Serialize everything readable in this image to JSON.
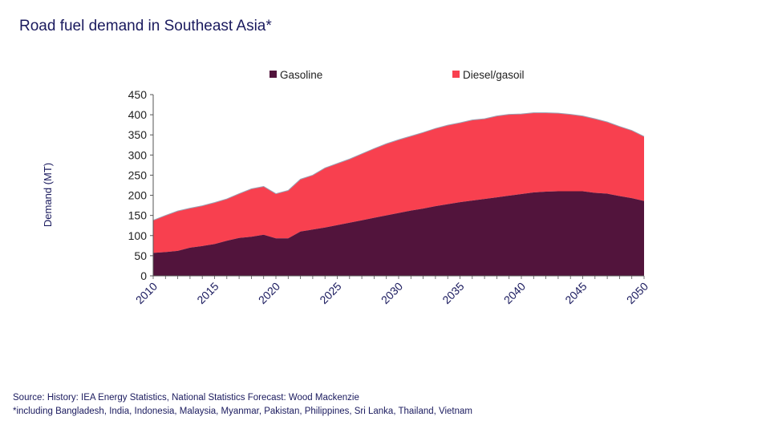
{
  "title": "Road fuel demand in Southeast Asia*",
  "source_line": "Source: History: IEA Energy Statistics, National Statistics Forecast: Wood Mackenzie",
  "footnote": "*including Bangladesh, India, Indonesia, Malaysia, Myanmar, Pakistan, Philippines, Sri Lanka, Thailand, Vietnam",
  "chart_data": {
    "type": "area",
    "stacked": true,
    "title": "Road fuel demand in Southeast Asia*",
    "xlabel": "",
    "ylabel": "Demand (MT)",
    "ylim": [
      0,
      450
    ],
    "yticks": [
      0,
      50,
      100,
      150,
      200,
      250,
      300,
      350,
      400,
      450
    ],
    "xlim": [
      2010,
      2050
    ],
    "xticks": [
      2010,
      2015,
      2020,
      2025,
      2030,
      2035,
      2040,
      2045,
      2050
    ],
    "grid": false,
    "legend": "top",
    "colors": {
      "gasoline": "#52143c",
      "diesel": "#f8404f",
      "axis": "#555555",
      "text": "#1a1a5e"
    },
    "x": [
      2010,
      2011,
      2012,
      2013,
      2014,
      2015,
      2016,
      2017,
      2018,
      2019,
      2020,
      2021,
      2022,
      2023,
      2024,
      2025,
      2026,
      2027,
      2028,
      2029,
      2030,
      2031,
      2032,
      2033,
      2034,
      2035,
      2036,
      2037,
      2038,
      2039,
      2040,
      2041,
      2042,
      2043,
      2044,
      2045,
      2046,
      2047,
      2048,
      2049,
      2050
    ],
    "series": [
      {
        "name": "Gasoline",
        "values": [
          57,
          59,
          62,
          70,
          74,
          79,
          87,
          94,
          97,
          102,
          93,
          93,
          110,
          115,
          120,
          126,
          132,
          138,
          144,
          150,
          156,
          162,
          167,
          173,
          178,
          183,
          187,
          191,
          195,
          199,
          203,
          207,
          209,
          210,
          210,
          210,
          206,
          204,
          198,
          193,
          186
        ]
      },
      {
        "name": "Diesel/gasoil",
        "values": [
          81,
          91,
          99,
          98,
          100,
          103,
          104,
          110,
          119,
          120,
          111,
          119,
          130,
          135,
          148,
          153,
          158,
          165,
          172,
          178,
          182,
          185,
          189,
          193,
          196,
          197,
          200,
          199,
          202,
          202,
          199,
          198,
          196,
          194,
          191,
          187,
          184,
          178,
          173,
          168,
          160
        ]
      }
    ]
  }
}
